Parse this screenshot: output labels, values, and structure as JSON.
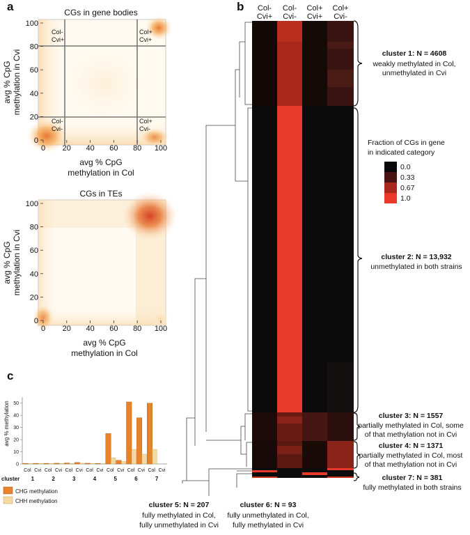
{
  "panels": {
    "a": {
      "letter": "a",
      "density_plots": [
        {
          "title": "CGs in gene bodies",
          "xlabel": [
            "avg % CpG",
            "methylation in Col"
          ],
          "ylabel": [
            "avg % CpG",
            "methylation in Cvi"
          ],
          "xticks": [
            "0",
            "20",
            "40",
            "60",
            "80",
            "100"
          ],
          "yticks": [
            "0",
            "20",
            "40",
            "60",
            "80",
            "100"
          ],
          "quadrants": [
            {
              "line1": "Col-",
              "line2": "Cvi+"
            },
            {
              "line1": "Col+",
              "line2": "Cvi+"
            },
            {
              "line1": "Col-",
              "line2": "Cvi-"
            },
            {
              "line1": "Col+",
              "line2": "Cvi-"
            }
          ]
        },
        {
          "title": "CGs in TEs",
          "xlabel": [
            "avg % CpG",
            "methylation in Col"
          ],
          "ylabel": [
            "avg % CpG",
            "methylation in Cvi"
          ],
          "xticks": [
            "0",
            "20",
            "40",
            "60",
            "80",
            "100"
          ],
          "yticks": [
            "0",
            "20",
            "40",
            "60",
            "80",
            "100"
          ]
        }
      ]
    },
    "b": {
      "letter": "b",
      "columns": [
        {
          "line1": "Col-",
          "line2": "Cvi+"
        },
        {
          "line1": "Col-",
          "line2": "Cvi-"
        },
        {
          "line1": "Col+",
          "line2": "Cvi+"
        },
        {
          "line1": "Col+",
          "line2": "Cvi-"
        }
      ],
      "legend": {
        "title": [
          "Fraction of CGs in gene",
          "in indicated category"
        ],
        "items": [
          {
            "label": "0.0",
            "color": "#0a0a0a"
          },
          {
            "label": "0.33",
            "color": "#4a1410"
          },
          {
            "label": "0.67",
            "color": "#a8281c"
          },
          {
            "label": "1.0",
            "color": "#e8392a"
          }
        ]
      },
      "clusters": [
        {
          "title": "cluster 1: N = 4608",
          "desc": [
            "weakly methylated in Col,",
            "unmethylated in Cvi"
          ]
        },
        {
          "title": "cluster 2:  N = 13,932",
          "desc": [
            "unmethylated in both strains"
          ]
        },
        {
          "title": "cluster 3: N = 1557",
          "desc": [
            "partially methylated in Col, some",
            "of that methylation not in Cvi"
          ]
        },
        {
          "title": "cluster 4: N = 1371",
          "desc": [
            "partially methylated in Col, most",
            "of that methylation not in Cvi"
          ]
        },
        {
          "title": "cluster 7: N = 381",
          "desc": [
            "fully methylated in both strains"
          ]
        },
        {
          "title": "cluster 5: N = 207",
          "desc": [
            "fully methylated in Col,",
            "fully unmethylated in Cvi"
          ]
        },
        {
          "title": "cluster 6: N = 93",
          "desc": [
            "fully unmethylated in Col,",
            "fully methylated in Cvi"
          ]
        }
      ]
    },
    "c": {
      "letter": "c"
    }
  },
  "chart_data": [
    {
      "type": "heatmap",
      "columns": [
        "Col- Cvi+",
        "Col- Cvi-",
        "Col+ Cvi+",
        "Col+ Cvi-"
      ],
      "clusters": [
        "cluster 1",
        "cluster 2",
        "cluster 3",
        "cluster 4",
        "cluster 5",
        "cluster 6",
        "cluster 7"
      ],
      "counts": [
        4608,
        13932,
        1557,
        1371,
        207,
        93,
        381
      ],
      "scale": [
        0.0,
        0.33,
        0.67,
        1.0
      ]
    },
    {
      "type": "bar",
      "ylabel": "avg % methylation",
      "xlabel": "cluster",
      "ylim": [
        0,
        55
      ],
      "yticks": [
        0,
        10,
        20,
        30,
        40,
        50
      ],
      "categories": [
        "1",
        "2",
        "3",
        "4",
        "5",
        "6",
        "7"
      ],
      "subcategories": [
        "Col",
        "Cvi"
      ],
      "series": [
        {
          "name": "CHG methylation",
          "color": "#e8832a",
          "values": [
            [
              0.5,
              0.5
            ],
            [
              0.5,
              0.6
            ],
            [
              0.8,
              1.2
            ],
            [
              0.6,
              0.4
            ],
            [
              25,
              3
            ],
            [
              51,
              38
            ],
            [
              50,
              0
            ]
          ]
        },
        {
          "name": "CHH methylation",
          "color": "#f5d9a0",
          "values": [
            [
              0.3,
              0.3
            ],
            [
              0.3,
              0.4
            ],
            [
              0.5,
              0.6
            ],
            [
              0.3,
              0.2
            ],
            [
              5,
              2
            ],
            [
              12,
              8
            ],
            [
              12,
              0
            ]
          ]
        }
      ]
    }
  ]
}
